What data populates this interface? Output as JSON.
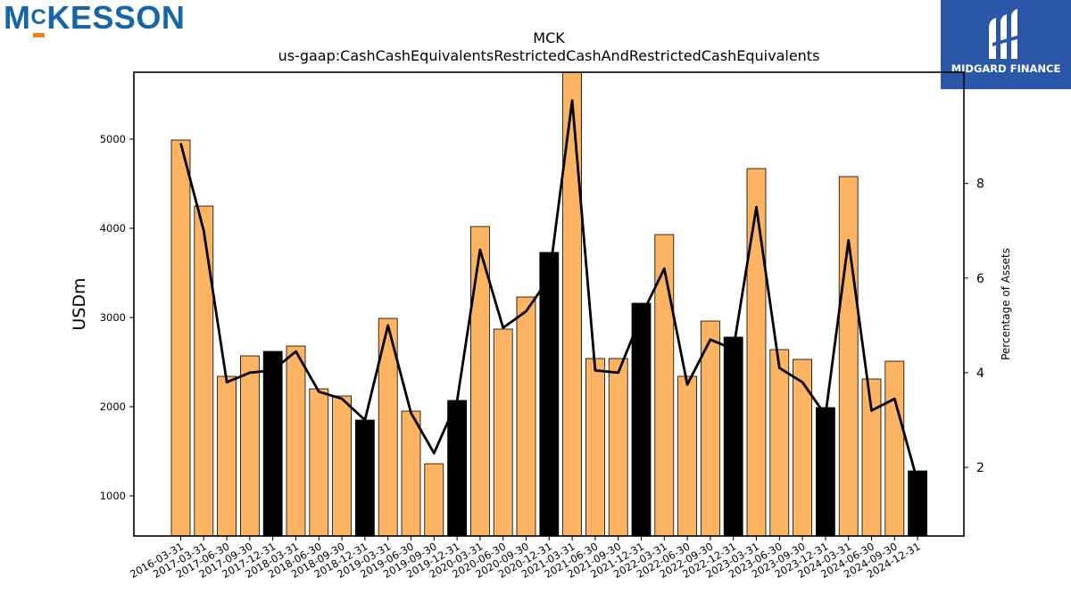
{
  "logos": {
    "left_text": "McKESSON",
    "left_accent_color": "#f0821e",
    "left_brand_color": "#1565a8",
    "right_text": "MIDGARD FINANCE",
    "right_bg_color": "#2b57a8"
  },
  "chart_data": {
    "type": "bar",
    "title": "MCK",
    "subtitle": "us-gaap:CashCashEquivalentsRestrictedCashAndRestrictedCashEquivalents",
    "ylabel": "USDm",
    "y2label": "Percentage of Assets",
    "ylim": [
      550,
      5750
    ],
    "y2lim": [
      0.55,
      10.35
    ],
    "yticks": [
      1000,
      2000,
      3000,
      4000,
      5000
    ],
    "y2ticks": [
      2,
      4,
      6,
      8
    ],
    "categories": [
      "2016-03-31",
      "2017-03-31",
      "2017-06-30",
      "2017-09-30",
      "2017-12-31",
      "2018-03-31",
      "2018-06-30",
      "2018-09-30",
      "2018-12-31",
      "2019-03-31",
      "2019-06-30",
      "2019-09-30",
      "2019-12-31",
      "2020-03-31",
      "2020-06-30",
      "2020-09-30",
      "2020-12-31",
      "2021-03-31",
      "2021-06-30",
      "2021-09-30",
      "2021-12-31",
      "2022-03-31",
      "2022-06-30",
      "2022-09-30",
      "2022-12-31",
      "2023-03-31",
      "2023-06-30",
      "2023-09-30",
      "2023-12-31",
      "2024-03-31",
      "2024-06-30",
      "2024-09-30",
      "2024-12-31"
    ],
    "series": [
      {
        "type": "bar",
        "values": [
          4990,
          4250,
          2340,
          2570,
          2620,
          2680,
          2200,
          2120,
          1850,
          2990,
          1950,
          1360,
          2070,
          4020,
          2870,
          3230,
          3730,
          5750,
          2540,
          2540,
          3160,
          3930,
          2340,
          2960,
          2780,
          4670,
          2640,
          2530,
          1990,
          4580,
          2310,
          2510,
          1280
        ],
        "highlight": [
          false,
          false,
          false,
          false,
          true,
          false,
          false,
          false,
          true,
          false,
          false,
          false,
          true,
          false,
          false,
          false,
          true,
          false,
          false,
          false,
          true,
          false,
          false,
          false,
          true,
          false,
          false,
          false,
          true,
          false,
          false,
          false,
          true
        ],
        "color": "#fdb462",
        "highlight_color": "#000000"
      },
      {
        "type": "line",
        "axis": "right",
        "values": [
          8.85,
          7.0,
          3.8,
          4.0,
          4.05,
          4.45,
          3.6,
          3.45,
          3.0,
          5.0,
          3.15,
          2.3,
          3.4,
          6.6,
          4.95,
          5.3,
          6.0,
          9.75,
          4.05,
          4.0,
          5.2,
          6.2,
          3.75,
          4.7,
          4.5,
          7.5,
          4.1,
          3.8,
          3.1,
          6.8,
          3.2,
          3.45,
          1.7
        ],
        "color": "#000000"
      }
    ],
    "grid": false,
    "legend": "none"
  }
}
